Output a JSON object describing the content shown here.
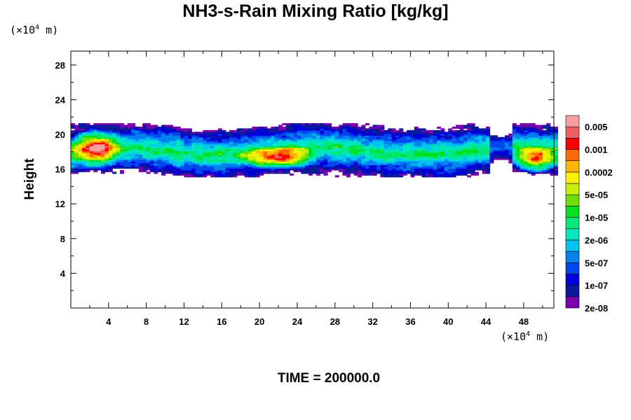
{
  "chart_data": {
    "type": "heatmap",
    "title": "NH3-s-Rain Mixing Ratio [kg/kg]",
    "ylabel": "Height",
    "xlabel": "",
    "x_unit": {
      "prefix": "(×10",
      "exp": "4",
      "suffix": " m)"
    },
    "y_unit": {
      "prefix": "(×10",
      "exp": "4",
      "suffix": " m)"
    },
    "xlim": [
      0,
      51.2
    ],
    "ylim": [
      0,
      29.6
    ],
    "x_ticks": [
      4,
      8,
      12,
      16,
      20,
      24,
      28,
      32,
      36,
      40,
      44,
      48
    ],
    "y_ticks": [
      4,
      8,
      12,
      16,
      20,
      24,
      28
    ],
    "time_label": "TIME = 200000.0",
    "colorbar": {
      "colors": [
        "#7a00b0",
        "#0a1a9a",
        "#0000d8",
        "#0046f0",
        "#0082f0",
        "#00c4f0",
        "#00e6c0",
        "#00e87a",
        "#00e020",
        "#6ee000",
        "#c8f000",
        "#fff000",
        "#ffb400",
        "#ff6a00",
        "#ff0000",
        "#f06060",
        "#f5a0a0"
      ],
      "labels": [
        "0.005",
        "0.001",
        "0.0002",
        "5e-05",
        "1e-05",
        "2e-06",
        "5e-07",
        "1e-07",
        "2e-08"
      ]
    },
    "field_summary": {
      "layer_bottom": 15.5,
      "layer_top": 20.5,
      "max_regions": [
        {
          "x": [
            0,
            5
          ],
          "y": [
            16,
            20.5
          ],
          "level": "0.005"
        },
        {
          "x": [
            18,
            26
          ],
          "y": [
            16,
            18.5
          ],
          "level": "0.005"
        },
        {
          "x": [
            47,
            51.2
          ],
          "y": [
            15.5,
            18.5
          ],
          "level": "0.005"
        }
      ]
    }
  }
}
